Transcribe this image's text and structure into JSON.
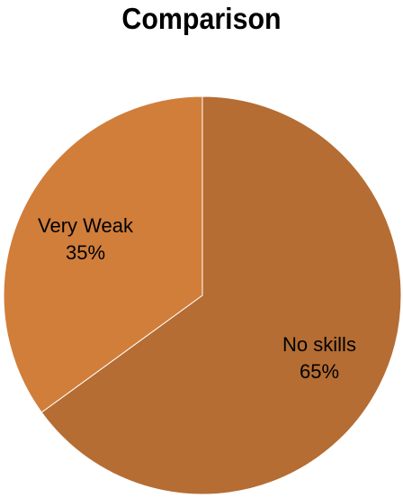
{
  "chart_data": {
    "type": "pie",
    "title": "Comparison",
    "slices": [
      {
        "label": "No skills",
        "value": 65,
        "percent_label": "65%",
        "color": "#B56D33"
      },
      {
        "label": "Very Weak",
        "value": 35,
        "percent_label": "35%",
        "color": "#D17E3B"
      }
    ],
    "start_angle_deg": 0,
    "direction": "clockwise",
    "legend": "none",
    "labels": "inside"
  }
}
